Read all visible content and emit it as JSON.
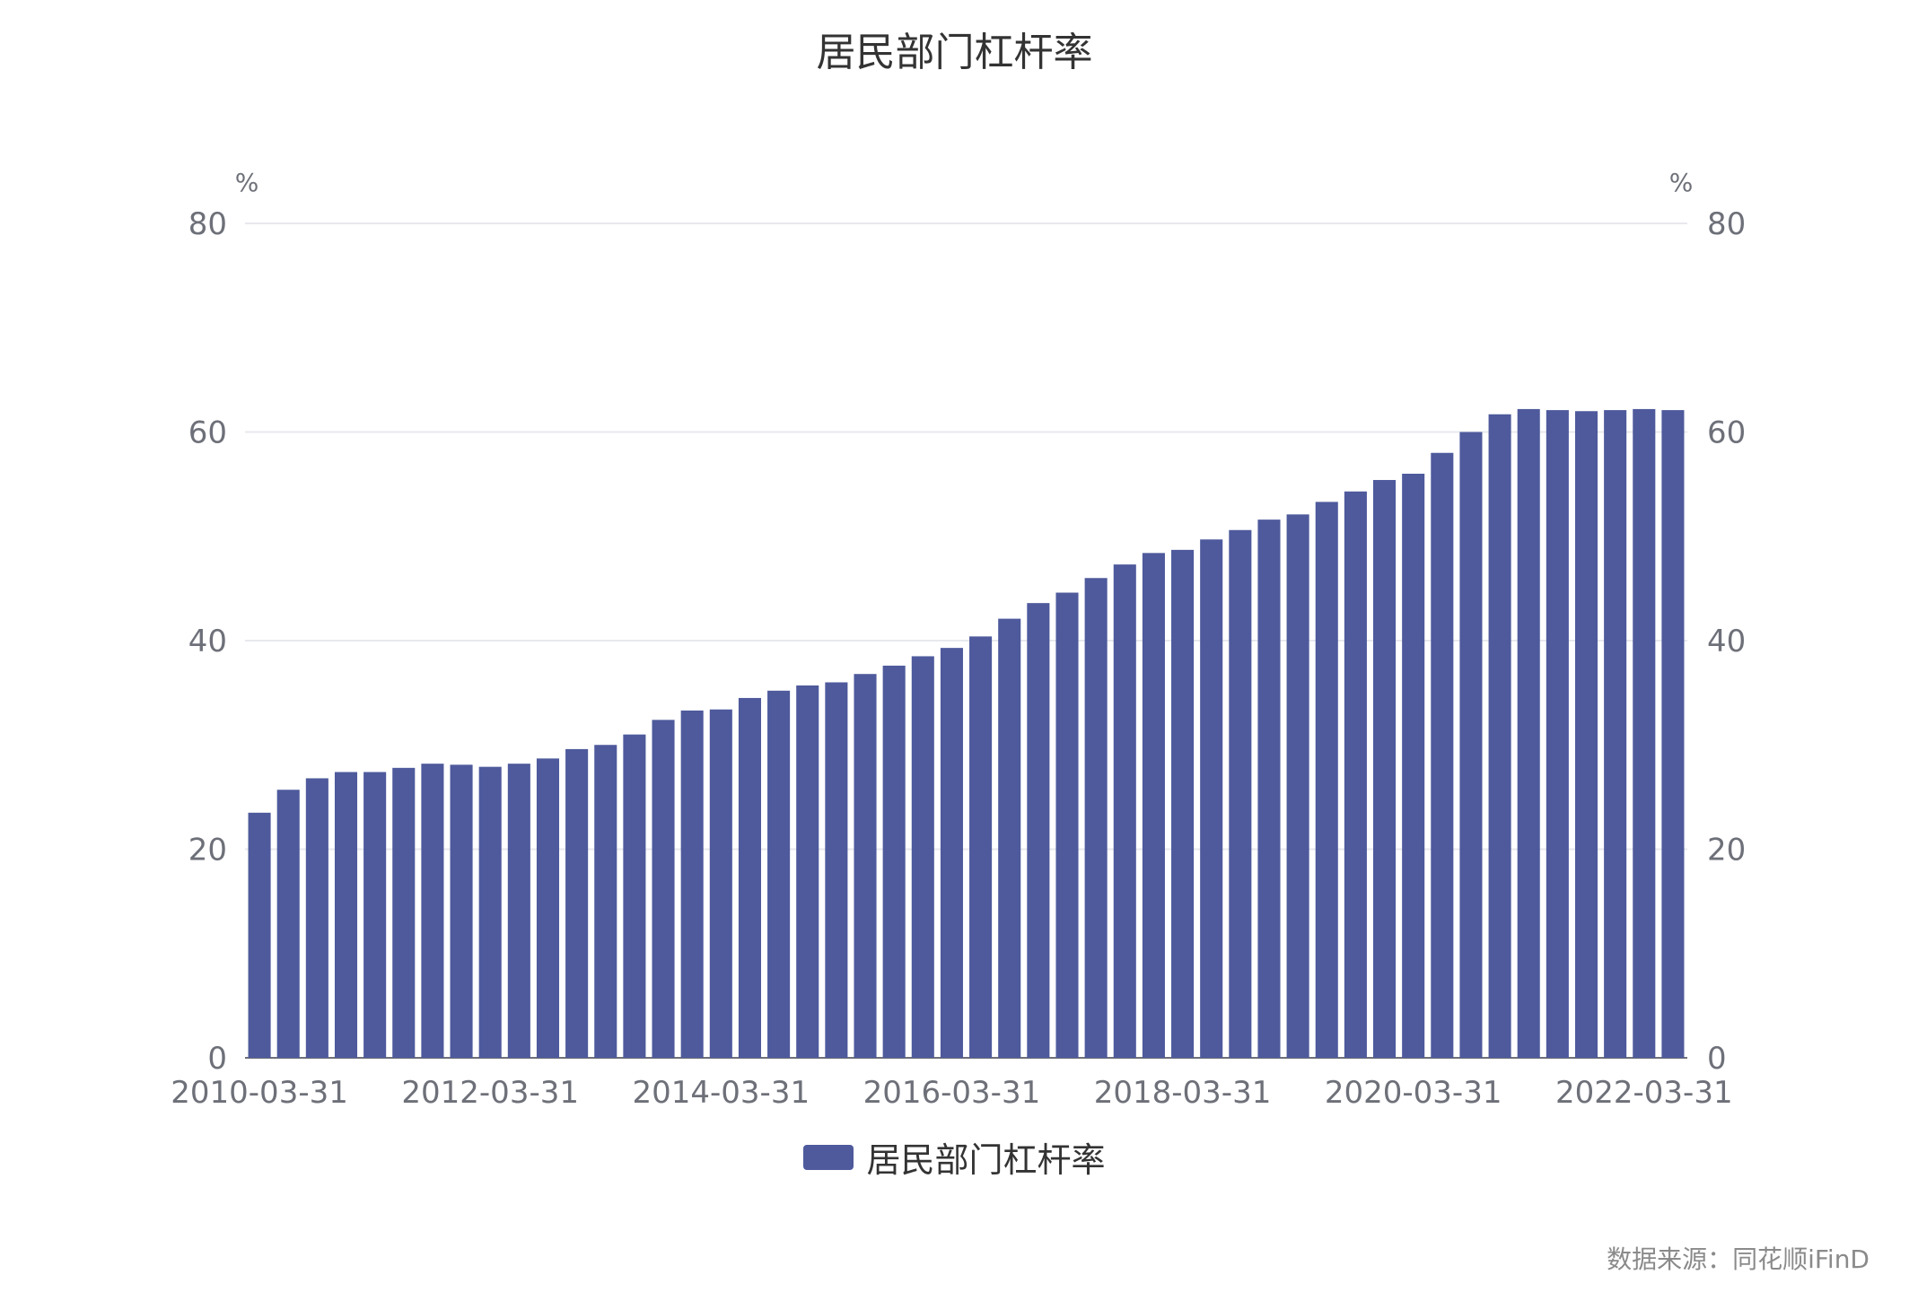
{
  "chart_data": {
    "type": "bar",
    "title": "居民部门杠杆率",
    "ylabel_left": "%",
    "ylabel_right": "%",
    "ylim": [
      0,
      80
    ],
    "yticks": [
      0,
      20,
      40,
      60,
      80
    ],
    "x_tick_labels": [
      "2010-03-31",
      "2012-03-31",
      "2014-03-31",
      "2016-03-31",
      "2018-03-31",
      "2020-03-31",
      "2022-03-31"
    ],
    "grid": true,
    "legend_position": "bottom",
    "series": [
      {
        "name": "居民部门杠杆率",
        "color": "#4e5a9c",
        "values": [
          23.5,
          25.7,
          26.8,
          27.4,
          27.4,
          27.8,
          28.2,
          28.1,
          27.9,
          28.2,
          28.7,
          29.6,
          30.0,
          31.0,
          32.4,
          33.3,
          33.4,
          34.5,
          35.2,
          35.7,
          36.0,
          36.8,
          37.6,
          38.5,
          39.3,
          40.4,
          42.1,
          43.6,
          44.6,
          46.0,
          47.3,
          48.4,
          48.7,
          49.7,
          50.6,
          51.6,
          52.1,
          53.3,
          54.3,
          55.4,
          56.0,
          58.0,
          60.0,
          61.7,
          62.2,
          62.1,
          62.0,
          62.1,
          62.2,
          62.1
        ]
      }
    ]
  },
  "source_text": "数据来源：同花顺iFinD"
}
